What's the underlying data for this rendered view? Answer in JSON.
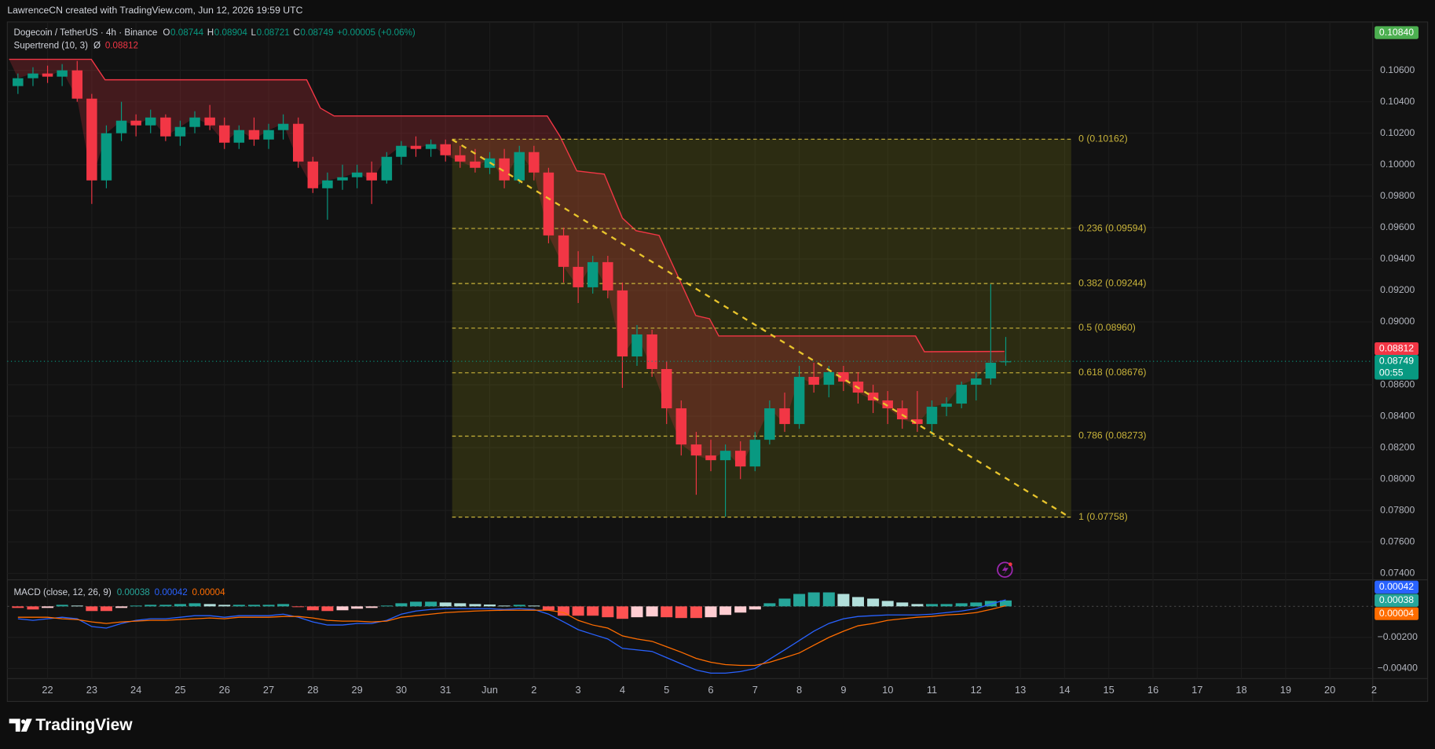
{
  "watermark": "LawrenceCN created with TradingView.com, Jun 12, 2026 19:59 UTC",
  "logo": "TradingView",
  "chart_data": [
    {
      "type": "candlestick",
      "title": "Dogecoin / TetherUS · 4h · Binance",
      "ohlc_letters": [
        "O",
        "H",
        "L",
        "C"
      ],
      "change": "+0.00005 (+0.06%)",
      "up_color": "#089981",
      "down_color": "#f23645",
      "xlim": [
        -0.91,
        29.97
      ],
      "xticks": [
        {
          "value": 0,
          "label": "22"
        },
        {
          "value": 1,
          "label": "23"
        },
        {
          "value": 2,
          "label": "24"
        },
        {
          "value": 3,
          "label": "25"
        },
        {
          "value": 4,
          "label": "26"
        },
        {
          "value": 5,
          "label": "27"
        },
        {
          "value": 6,
          "label": "28"
        },
        {
          "value": 7,
          "label": "29"
        },
        {
          "value": 8,
          "label": "30"
        },
        {
          "value": 9,
          "label": "31"
        },
        {
          "value": 10,
          "label": "Jun"
        },
        {
          "value": 11,
          "label": "2"
        },
        {
          "value": 12,
          "label": "3"
        },
        {
          "value": 13,
          "label": "4"
        },
        {
          "value": 14,
          "label": "5"
        },
        {
          "value": 15,
          "label": "6"
        },
        {
          "value": 16,
          "label": "7"
        },
        {
          "value": 17,
          "label": "8"
        },
        {
          "value": 18,
          "label": "9"
        },
        {
          "value": 19,
          "label": "10"
        },
        {
          "value": 20,
          "label": "11"
        },
        {
          "value": 21,
          "label": "12"
        },
        {
          "value": 22,
          "label": "13"
        },
        {
          "value": 23,
          "label": "14"
        },
        {
          "value": 24,
          "label": "15"
        },
        {
          "value": 25,
          "label": "16"
        },
        {
          "value": 26,
          "label": "17"
        },
        {
          "value": 27,
          "label": "18"
        },
        {
          "value": 28,
          "label": "19"
        },
        {
          "value": 29,
          "label": "20"
        },
        {
          "value": 30,
          "label": "2"
        }
      ],
      "ylim": [
        0.07359,
        0.10908
      ],
      "yticks": [
        {
          "value": 0.106,
          "label": "0.10600"
        },
        {
          "value": 0.104,
          "label": "0.10400"
        },
        {
          "value": 0.102,
          "label": "0.10200"
        },
        {
          "value": 0.1,
          "label": "0.10000"
        },
        {
          "value": 0.098,
          "label": "0.09800"
        },
        {
          "value": 0.096,
          "label": "0.09600"
        },
        {
          "value": 0.094,
          "label": "0.09400"
        },
        {
          "value": 0.092,
          "label": "0.09200"
        },
        {
          "value": 0.09,
          "label": "0.09000"
        },
        {
          "value": 0.086,
          "label": "0.08600"
        },
        {
          "value": 0.084,
          "label": "0.08400"
        },
        {
          "value": 0.082,
          "label": "0.08200"
        },
        {
          "value": 0.08,
          "label": "0.08000"
        },
        {
          "value": 0.078,
          "label": "0.07800"
        },
        {
          "value": 0.076,
          "label": "0.07600"
        },
        {
          "value": 0.074,
          "label": "0.07400"
        }
      ],
      "grid": true,
      "x": [
        -0.67,
        -0.33,
        0,
        0.33,
        0.67,
        1,
        1.33,
        1.67,
        2,
        2.33,
        2.67,
        3,
        3.33,
        3.67,
        4,
        4.33,
        4.67,
        5,
        5.33,
        5.67,
        6,
        6.33,
        6.67,
        7,
        7.33,
        7.67,
        8,
        8.33,
        8.67,
        9,
        9.33,
        9.67,
        10,
        10.33,
        10.67,
        11,
        11.33,
        11.67,
        12,
        12.33,
        12.67,
        13,
        13.33,
        13.67,
        14,
        14.33,
        14.67,
        15,
        15.33,
        15.67,
        16,
        16.33,
        16.67,
        17,
        17.33,
        17.67,
        18,
        18.33,
        18.67,
        19,
        19.33,
        19.67,
        20,
        20.33,
        20.67,
        21,
        21.33,
        21.67
      ],
      "ohlc": [
        [
          0.105,
          0.1058,
          0.1045,
          0.1055
        ],
        [
          0.1055,
          0.1062,
          0.105,
          0.1058
        ],
        [
          0.1058,
          0.1063,
          0.1052,
          0.1056
        ],
        [
          0.1056,
          0.1064,
          0.105,
          0.106
        ],
        [
          0.106,
          0.1066,
          0.104,
          0.1042
        ],
        [
          0.1042,
          0.1045,
          0.0975,
          0.099
        ],
        [
          0.099,
          0.1025,
          0.0985,
          0.102
        ],
        [
          0.102,
          0.104,
          0.1015,
          0.1028
        ],
        [
          0.1028,
          0.1032,
          0.1018,
          0.1025
        ],
        [
          0.1025,
          0.1035,
          0.102,
          0.103
        ],
        [
          0.103,
          0.1032,
          0.1015,
          0.1018
        ],
        [
          0.1018,
          0.1028,
          0.1012,
          0.1024
        ],
        [
          0.1024,
          0.1034,
          0.102,
          0.103
        ],
        [
          0.103,
          0.1038,
          0.1022,
          0.1025
        ],
        [
          0.1025,
          0.103,
          0.101,
          0.1014
        ],
        [
          0.1014,
          0.1025,
          0.101,
          0.1022
        ],
        [
          0.1022,
          0.103,
          0.1012,
          0.1016
        ],
        [
          0.1016,
          0.1026,
          0.101,
          0.1022
        ],
        [
          0.1022,
          0.1032,
          0.1016,
          0.1026
        ],
        [
          0.1026,
          0.103,
          0.0998,
          0.1002
        ],
        [
          0.1002,
          0.1005,
          0.0982,
          0.0985
        ],
        [
          0.0985,
          0.0995,
          0.0965,
          0.099
        ],
        [
          0.099,
          0.1,
          0.0984,
          0.0992
        ],
        [
          0.0992,
          0.1,
          0.0985,
          0.0995
        ],
        [
          0.0995,
          0.1002,
          0.0975,
          0.099
        ],
        [
          0.099,
          0.1008,
          0.0988,
          0.1005
        ],
        [
          0.1005,
          0.1015,
          0.1,
          0.1012
        ],
        [
          0.1012,
          0.1018,
          0.1005,
          0.101
        ],
        [
          0.101,
          0.1016,
          0.1005,
          0.1013
        ],
        [
          0.1013,
          0.1016,
          0.1002,
          0.1006
        ],
        [
          0.1006,
          0.1012,
          0.0998,
          0.1002
        ],
        [
          0.1002,
          0.101,
          0.0995,
          0.0998
        ],
        [
          0.0998,
          0.1008,
          0.0994,
          0.1004
        ],
        [
          0.1004,
          0.101,
          0.0985,
          0.099
        ],
        [
          0.099,
          0.1012,
          0.0988,
          0.1008
        ],
        [
          0.1008,
          0.1012,
          0.099,
          0.0995
        ],
        [
          0.0995,
          0.0998,
          0.095,
          0.0955
        ],
        [
          0.0955,
          0.096,
          0.0925,
          0.0935
        ],
        [
          0.0935,
          0.0945,
          0.0912,
          0.0922
        ],
        [
          0.0922,
          0.0942,
          0.0918,
          0.0938
        ],
        [
          0.0938,
          0.0942,
          0.0915,
          0.092
        ],
        [
          0.092,
          0.0925,
          0.0858,
          0.0878
        ],
        [
          0.0878,
          0.0898,
          0.0872,
          0.0892
        ],
        [
          0.0892,
          0.0895,
          0.0865,
          0.087
        ],
        [
          0.087,
          0.0875,
          0.0835,
          0.0845
        ],
        [
          0.0845,
          0.085,
          0.0815,
          0.0822
        ],
        [
          0.0822,
          0.083,
          0.079,
          0.0815
        ],
        [
          0.0815,
          0.0825,
          0.0805,
          0.0812
        ],
        [
          0.0812,
          0.0822,
          0.0776,
          0.0818
        ],
        [
          0.0818,
          0.0824,
          0.08,
          0.0808
        ],
        [
          0.0808,
          0.083,
          0.0805,
          0.0825
        ],
        [
          0.0825,
          0.085,
          0.0822,
          0.0845
        ],
        [
          0.0845,
          0.0855,
          0.083,
          0.0835
        ],
        [
          0.0835,
          0.0872,
          0.0832,
          0.0865
        ],
        [
          0.0865,
          0.0874,
          0.0855,
          0.086
        ],
        [
          0.086,
          0.0872,
          0.0852,
          0.0868
        ],
        [
          0.0868,
          0.0872,
          0.0856,
          0.0862
        ],
        [
          0.0862,
          0.0868,
          0.0848,
          0.0855
        ],
        [
          0.0855,
          0.086,
          0.0842,
          0.085
        ],
        [
          0.085,
          0.0856,
          0.0835,
          0.0845
        ],
        [
          0.0845,
          0.085,
          0.0832,
          0.0838
        ],
        [
          0.0838,
          0.0856,
          0.083,
          0.0835
        ],
        [
          0.0835,
          0.085,
          0.0828,
          0.0846
        ],
        [
          0.0846,
          0.0852,
          0.084,
          0.0848
        ],
        [
          0.0848,
          0.0862,
          0.0845,
          0.086
        ],
        [
          0.086,
          0.0868,
          0.085,
          0.0864
        ],
        [
          0.0864,
          0.0924,
          0.086,
          0.0874
        ],
        [
          0.08744,
          0.08904,
          0.08721,
          0.08749
        ]
      ],
      "countdown": "00:55",
      "supertrend": {
        "name": "Supertrend (10, 3)",
        "symbol": "Ø",
        "color": "#f23645",
        "fill": "rgba(242,54,69,0.22)",
        "x": [
          -0.87,
          0.99,
          1.3,
          5.86,
          6.17,
          6.48,
          11.3,
          11.59,
          11.97,
          12.59,
          13,
          13.31,
          13.83,
          14.24,
          14.66,
          14.97,
          15.18,
          19.63,
          19.83,
          21.64
        ],
        "values": [
          0.1067,
          0.1067,
          0.1054,
          0.1054,
          0.1036,
          0.1031,
          0.1031,
          0.1018,
          0.0996,
          0.0994,
          0.0966,
          0.0958,
          0.0955,
          0.093,
          0.0904,
          0.0902,
          0.0891,
          0.0891,
          0.0881,
          0.08812
        ]
      },
      "fib": {
        "x": [
          9.15,
          23.15
        ],
        "color": "#c9b43a",
        "fill": "rgba(128,128,20,0.24)",
        "levels": [
          {
            "value": 0.10162,
            "label": "0 (0.10162)"
          },
          {
            "value": 0.09594,
            "label": "0.236 (0.09594)"
          },
          {
            "value": 0.09244,
            "label": "0.382 (0.09244)"
          },
          {
            "value": 0.0896,
            "label": "0.5 (0.08960)"
          },
          {
            "value": 0.08676,
            "label": "0.618 (0.08676)"
          },
          {
            "value": 0.08273,
            "label": "0.786 (0.08273)"
          },
          {
            "value": 0.07758,
            "label": "1 (0.07758)"
          }
        ]
      },
      "trendline": {
        "color": "#e8c42c",
        "x": [
          9.15,
          23.04
        ],
        "values": [
          0.1016,
          0.0777
        ]
      },
      "price_tags": [
        {
          "value": 0.1084,
          "label": "0.10840",
          "color": "#4caf50"
        }
      ]
    },
    {
      "type": "macd",
      "title": "MACD (close, 12, 26, 9)",
      "ylim": [
        -0.00465,
        0.00171
      ],
      "yticks": [
        {
          "value": -0.002,
          "label": "−0.00200"
        },
        {
          "value": -0.004,
          "label": "−0.00400"
        }
      ],
      "histogram": {
        "colors": [
          "#26a69a",
          "#b2dfdb",
          "#ff5252",
          "#ffcdd2"
        ],
        "values": [
          -0.0001,
          -0.0002,
          -0.0001,
          0.0001,
          5e-05,
          -0.0003,
          -0.0003,
          -0.0001,
          5e-05,
          0.0001,
          0.0001,
          0.00015,
          0.0002,
          0.00015,
          0.0001,
          0.0001,
          0.0001,
          0.0001,
          0.00015,
          -5e-05,
          -0.00025,
          -0.0003,
          -0.00025,
          -0.00015,
          -0.0001,
          5e-05,
          0.0002,
          0.0003,
          0.0003,
          0.00025,
          0.0002,
          0.00015,
          0.00012,
          5e-05,
          0.0001,
          5e-05,
          -0.00025,
          -0.0006,
          -0.0006,
          -0.0006,
          -0.0007,
          -0.0008,
          -0.0007,
          -0.00065,
          -0.0007,
          -0.00075,
          -0.00075,
          -0.0007,
          -0.00055,
          -0.0004,
          -0.0002,
          0.0002,
          0.0005,
          0.0008,
          0.0009,
          0.0009,
          0.0008,
          0.0006,
          0.0005,
          0.00035,
          0.00025,
          0.00015,
          0.00015,
          0.00015,
          0.0002,
          0.00025,
          0.00035,
          0.00038
        ]
      },
      "series": [
        {
          "color": "#2962ff",
          "values": [
            -0.0008,
            -0.0009,
            -0.0008,
            -0.0007,
            -0.0008,
            -0.0013,
            -0.0014,
            -0.0011,
            -0.0009,
            -0.0008,
            -0.0008,
            -0.0007,
            -0.0006,
            -0.0006,
            -0.0007,
            -0.0006,
            -0.0006,
            -0.0006,
            -0.0005,
            -0.0007,
            -0.001,
            -0.0012,
            -0.0012,
            -0.0011,
            -0.0011,
            -0.0009,
            -0.0005,
            -0.0003,
            -0.0002,
            -0.00015,
            -0.00015,
            -0.00015,
            -0.00015,
            -0.0002,
            -0.00015,
            -0.0002,
            -0.0005,
            -0.001,
            -0.0015,
            -0.0018,
            -0.0021,
            -0.0027,
            -0.0028,
            -0.0029,
            -0.0033,
            -0.0037,
            -0.0041,
            -0.0043,
            -0.0043,
            -0.0042,
            -0.004,
            -0.0034,
            -0.0028,
            -0.0022,
            -0.0016,
            -0.0011,
            -0.0008,
            -0.00065,
            -0.0006,
            -0.00055,
            -0.00055,
            -0.00055,
            -0.0005,
            -0.0004,
            -0.0003,
            -0.00015,
            0.00015,
            0.00042
          ]
        },
        {
          "color": "#ff6d00",
          "values": [
            -0.0007,
            -0.0007,
            -0.0007,
            -0.0008,
            -0.00085,
            -0.001,
            -0.0011,
            -0.001,
            -0.00095,
            -0.0009,
            -0.0009,
            -0.00085,
            -0.0008,
            -0.00075,
            -0.0008,
            -0.0007,
            -0.0007,
            -0.0007,
            -0.00065,
            -0.00065,
            -0.00075,
            -0.0009,
            -0.00095,
            -0.00095,
            -0.001,
            -0.00095,
            -0.0007,
            -0.0006,
            -0.0005,
            -0.0004,
            -0.00035,
            -0.0003,
            -0.00027,
            -0.00025,
            -0.00025,
            -0.00025,
            -0.00025,
            -0.0004,
            -0.0009,
            -0.0012,
            -0.0014,
            -0.0019,
            -0.0021,
            -0.00225,
            -0.0026,
            -0.00295,
            -0.00335,
            -0.0036,
            -0.00375,
            -0.0038,
            -0.0038,
            -0.0036,
            -0.0033,
            -0.003,
            -0.0025,
            -0.002,
            -0.0016,
            -0.00125,
            -0.0011,
            -0.0009,
            -0.0008,
            -0.0007,
            -0.00065,
            -0.00055,
            -0.0005,
            -0.0004,
            -0.0002,
            4e-05
          ]
        }
      ]
    }
  ]
}
